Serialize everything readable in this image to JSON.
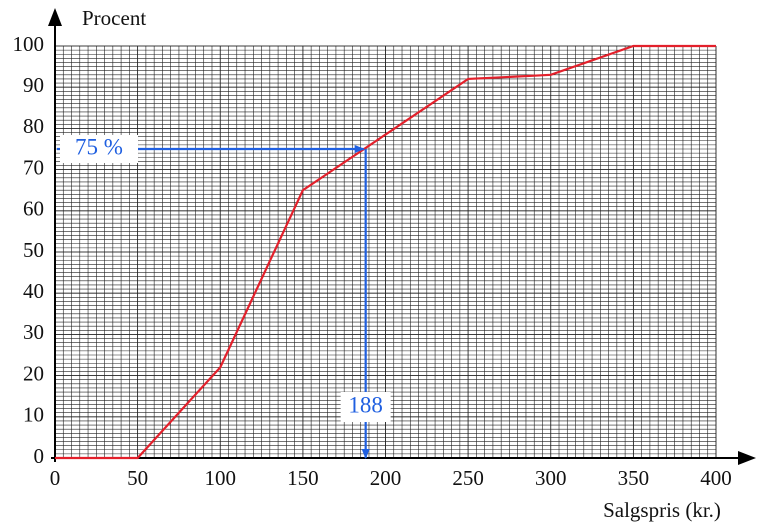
{
  "chart_data": {
    "type": "line",
    "x_label": "Salgspris (kr.)",
    "y_label": "Procent",
    "x": [
      0,
      50,
      100,
      150,
      250,
      300,
      350,
      400
    ],
    "series": [
      {
        "color": "#e3202b",
        "values": [
          0,
          0,
          22,
          65,
          92,
          93,
          100,
          100
        ]
      }
    ],
    "xlim": [
      0,
      400
    ],
    "ylim": [
      0,
      100
    ],
    "xticks": [
      0,
      50,
      100,
      150,
      200,
      250,
      300,
      350,
      400
    ],
    "yticks": [
      0,
      10,
      20,
      30,
      40,
      50,
      60,
      70,
      80,
      90,
      100
    ],
    "grid": true,
    "minor_grid": {
      "x": 5,
      "y": 1
    },
    "annotation": {
      "color": "#1f5fe0",
      "y": {
        "value": 75,
        "label": "75 %"
      },
      "x": 188
    }
  }
}
